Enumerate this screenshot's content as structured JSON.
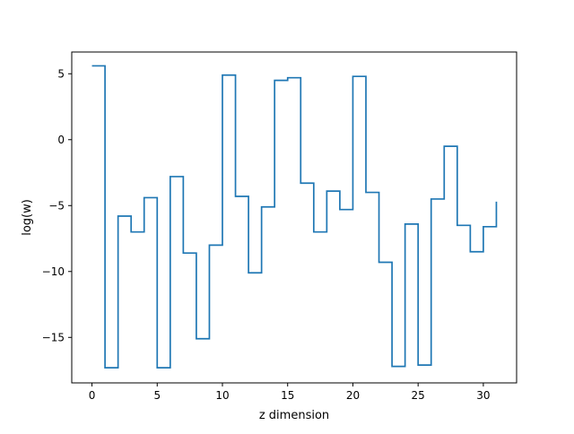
{
  "chart_data": {
    "type": "line",
    "step": "post",
    "title": "",
    "xlabel": "z dimension",
    "ylabel": "log(w)",
    "xlim": [
      -1.55,
      32.55
    ],
    "ylim": [
      -18.45,
      6.65
    ],
    "xticks": [
      0,
      5,
      10,
      15,
      20,
      25,
      30
    ],
    "xtick_labels": [
      "0",
      "5",
      "10",
      "15",
      "20",
      "25",
      "30"
    ],
    "yticks": [
      5,
      0,
      -5,
      -10,
      -15
    ],
    "ytick_labels": [
      "5",
      "0",
      "−5",
      "−10",
      "−15"
    ],
    "grid": false,
    "legend": "none",
    "series": [
      {
        "color": "#1f77b4",
        "x": [
          0,
          1,
          2,
          3,
          4,
          5,
          6,
          7,
          8,
          9,
          10,
          11,
          12,
          13,
          14,
          15,
          16,
          17,
          18,
          19,
          20,
          21,
          22,
          23,
          24,
          25,
          26,
          27,
          28,
          29,
          30,
          31
        ],
        "y": [
          5.6,
          -17.3,
          -5.8,
          -7.0,
          -4.4,
          -17.3,
          -2.8,
          -8.6,
          -15.1,
          -8.0,
          4.9,
          -4.3,
          -10.1,
          -5.1,
          4.5,
          4.7,
          -3.3,
          -7.0,
          -3.9,
          -5.3,
          4.8,
          -4.0,
          -9.3,
          -17.2,
          -6.4,
          -17.1,
          -4.5,
          -0.5,
          -6.5,
          -8.5,
          -6.6,
          -4.7
        ]
      }
    ]
  }
}
